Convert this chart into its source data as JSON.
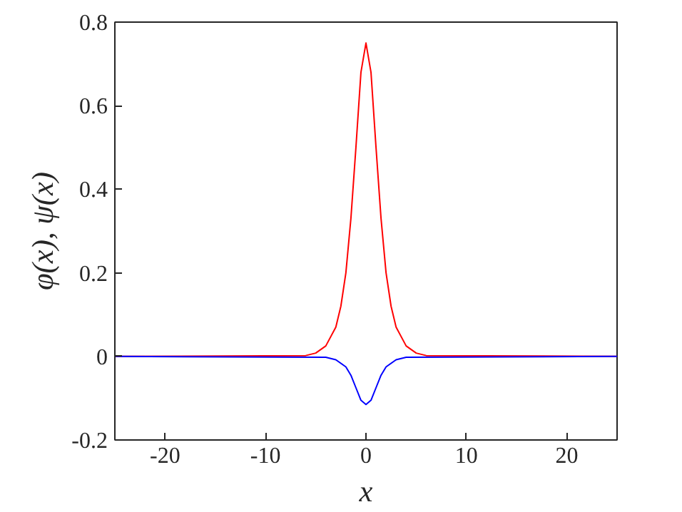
{
  "chart_data": {
    "type": "line",
    "xlabel": "x",
    "ylabel": "φ(x), ψ(x)",
    "xlim": [
      -25,
      25
    ],
    "ylim": [
      -0.2,
      0.8
    ],
    "xticks": [
      {
        "value": -20,
        "label": "-20"
      },
      {
        "value": -10,
        "label": "-10"
      },
      0,
      10,
      20
    ],
    "yticks": [
      {
        "value": -0.2,
        "label": "-0.2"
      },
      0,
      0.2,
      0.4,
      0.6,
      0.8
    ],
    "grid": false,
    "line_style": "solid",
    "series": [
      {
        "color": "#ff0000",
        "x": [
          -25,
          -6,
          -5,
          -4,
          -3,
          -2.5,
          -2,
          -1.5,
          -1,
          -0.5,
          0,
          0.5,
          1,
          1.5,
          2,
          2.5,
          3,
          4,
          5,
          6,
          25
        ],
        "values": [
          0,
          0.002,
          0.008,
          0.025,
          0.07,
          0.12,
          0.2,
          0.33,
          0.5,
          0.68,
          0.75,
          0.68,
          0.5,
          0.33,
          0.2,
          0.12,
          0.07,
          0.025,
          0.008,
          0.002,
          0
        ]
      },
      {
        "color": "#0000ff",
        "x": [
          -25,
          -4,
          -3,
          -2,
          -1.5,
          -1,
          -0.5,
          0,
          0.5,
          1,
          1.5,
          2,
          3,
          4,
          25
        ],
        "values": [
          0,
          -0.002,
          -0.008,
          -0.025,
          -0.045,
          -0.075,
          -0.105,
          -0.115,
          -0.105,
          -0.075,
          -0.045,
          -0.025,
          -0.008,
          -0.002,
          0
        ]
      }
    ]
  }
}
